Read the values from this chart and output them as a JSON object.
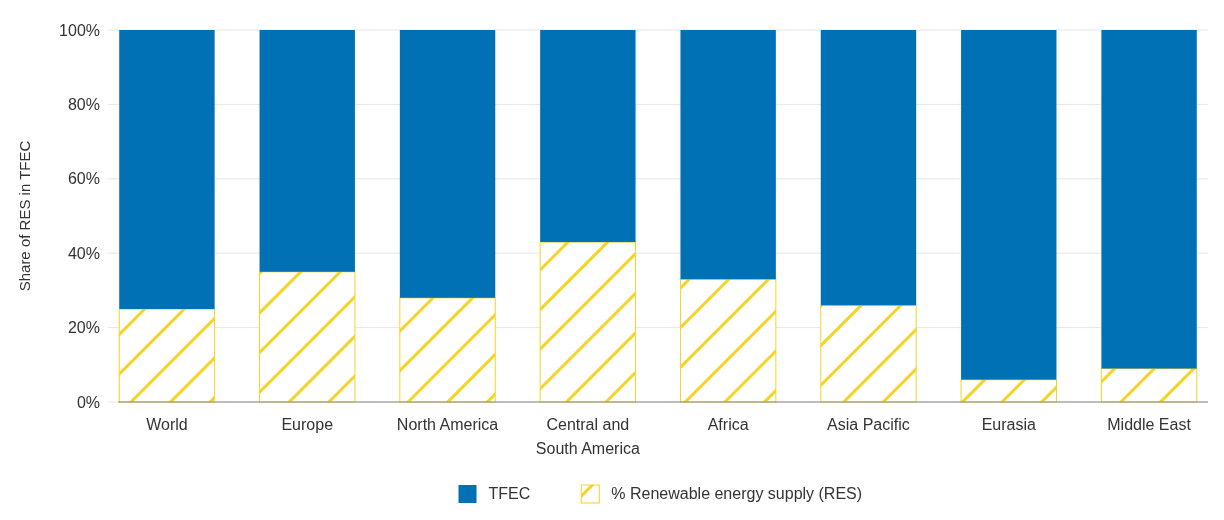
{
  "chart_data": {
    "type": "bar",
    "stacked": true,
    "ylabel": "Share of RES in TFEC",
    "categories": [
      "World",
      "Europe",
      "North America",
      "Central and South America",
      "Africa",
      "Asia Pacific",
      "Eurasia",
      "Middle East"
    ],
    "series": [
      {
        "name": "% Renewable energy supply (RES)",
        "color": "#f5d327",
        "values": [
          25,
          35,
          28,
          43,
          33,
          26,
          6,
          9
        ]
      },
      {
        "name": "TFEC",
        "color": "#0071b5",
        "values": [
          75,
          65,
          72,
          57,
          67,
          74,
          94,
          91
        ]
      }
    ],
    "ylim": [
      0,
      100
    ],
    "yticks": [
      {
        "value": 0,
        "label": "0%"
      },
      {
        "value": 20,
        "label": "20%"
      },
      {
        "value": 40,
        "label": "40%"
      },
      {
        "value": 60,
        "label": "60%"
      },
      {
        "value": 80,
        "label": "80%"
      },
      {
        "value": 100,
        "label": "100%"
      }
    ],
    "grid": "y",
    "legend": "bottom"
  }
}
